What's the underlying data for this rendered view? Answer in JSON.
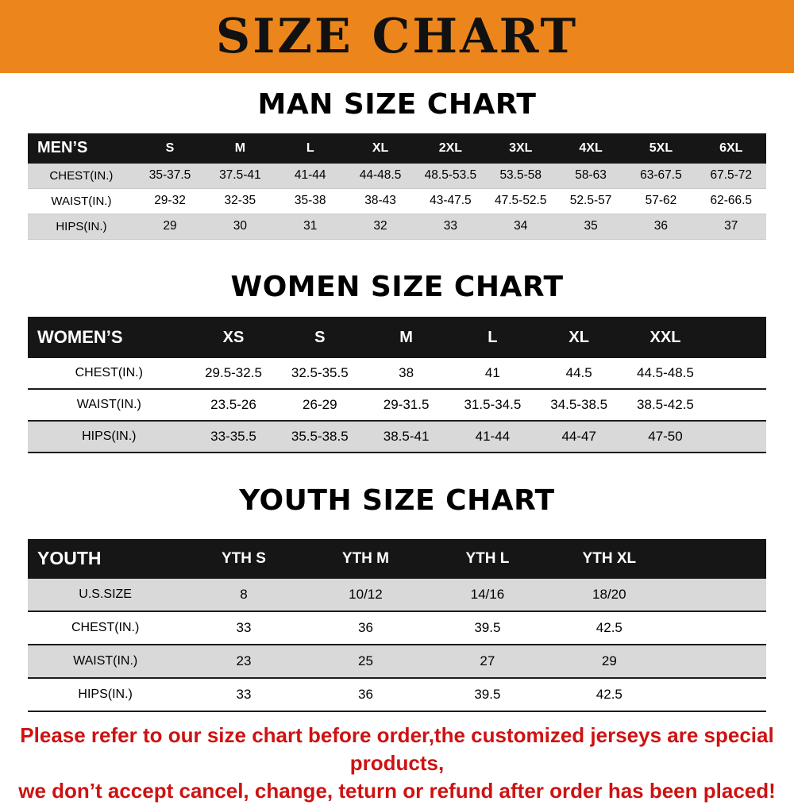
{
  "banner": {
    "title": "SIZE CHART",
    "bg_color": "#EC861C",
    "text_color": "#111111"
  },
  "sections": [
    {
      "heading": "MAN SIZE CHART",
      "table": {
        "header": [
          "MEN’S",
          "S",
          "M",
          "L",
          "XL",
          "2XL",
          "3XL",
          "4XL",
          "5XL",
          "6XL"
        ],
        "rows": [
          {
            "label": "CHEST(IN.)",
            "values": [
              "35-37.5",
              "37.5-41",
              "41-44",
              "44-48.5",
              "48.5-53.5",
              "53.5-58",
              "58-63",
              "63-67.5",
              "67.5-72"
            ]
          },
          {
            "label": "WAIST(IN.)",
            "values": [
              "29-32",
              "32-35",
              "35-38",
              "38-43",
              "43-47.5",
              "47.5-52.5",
              "52.5-57",
              "57-62",
              "62-66.5"
            ]
          },
          {
            "label": "HIPS(IN.)",
            "values": [
              "29",
              "30",
              "31",
              "32",
              "33",
              "34",
              "35",
              "36",
              "37"
            ]
          }
        ],
        "row_shading": [
          "gray",
          "white",
          "gray"
        ]
      }
    },
    {
      "heading": "WOMEN SIZE CHART",
      "table": {
        "header": [
          "WOMEN’S",
          "XS",
          "S",
          "M",
          "L",
          "XL",
          "XXL"
        ],
        "rows": [
          {
            "label": "CHEST(IN.)",
            "values": [
              "29.5-32.5",
              "32.5-35.5",
              "38",
              "41",
              "44.5",
              "44.5-48.5"
            ]
          },
          {
            "label": "WAIST(IN.)",
            "values": [
              "23.5-26",
              "26-29",
              "29-31.5",
              "31.5-34.5",
              "34.5-38.5",
              "38.5-42.5"
            ]
          },
          {
            "label": "HIPS(IN.)",
            "values": [
              "33-35.5",
              "35.5-38.5",
              "38.5-41",
              "41-44",
              "44-47",
              "47-50"
            ]
          }
        ],
        "row_shading": [
          "white",
          "white",
          "gray"
        ]
      }
    },
    {
      "heading": "YOUTH SIZE CHART",
      "table": {
        "header": [
          "YOUTH",
          "YTH S",
          "YTH M",
          "YTH L",
          "YTH XL"
        ],
        "rows": [
          {
            "label": "U.S.SIZE",
            "values": [
              "8",
              "10/12",
              "14/16",
              "18/20"
            ]
          },
          {
            "label": "CHEST(IN.)",
            "values": [
              "33",
              "36",
              "39.5",
              "42.5"
            ]
          },
          {
            "label": "WAIST(IN.)",
            "values": [
              "23",
              "25",
              "27",
              "29"
            ]
          },
          {
            "label": "HIPS(IN.)",
            "values": [
              "33",
              "36",
              "39.5",
              "42.5"
            ]
          }
        ],
        "row_shading": [
          "gray",
          "white",
          "gray",
          "white"
        ]
      }
    }
  ],
  "footer": {
    "line1": "Please refer to our size chart before order,the customized jerseys are special products,",
    "line2": "we don’t accept cancel, change, teturn or refund after order has been placed!",
    "color": "#CE1212"
  }
}
